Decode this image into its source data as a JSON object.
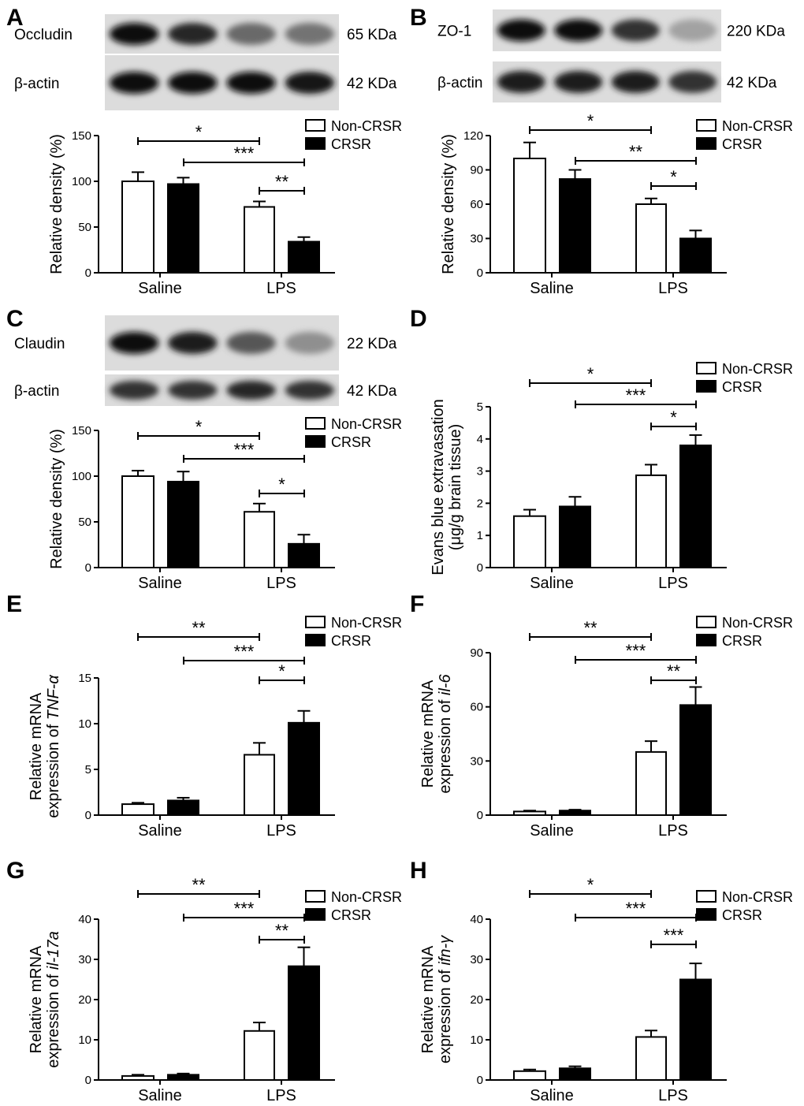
{
  "legend": {
    "non": "Non-CRSR",
    "crsr": "CRSR"
  },
  "colors": {
    "non": "#ffffff",
    "crsr": "#000000",
    "stroke": "#000000"
  },
  "chart_data": [
    {
      "panel": "A",
      "type": "bar",
      "categories": [
        "Saline",
        "LPS"
      ],
      "ylabel": [
        "Relative density (%)"
      ],
      "gene": "",
      "ylim": [
        0,
        150
      ],
      "ticks": [
        0,
        50,
        100,
        150
      ],
      "series": [
        {
          "name": "Non-CRSR",
          "values": [
            100,
            72
          ],
          "errors": [
            10,
            6
          ]
        },
        {
          "name": "CRSR",
          "values": [
            97,
            34
          ],
          "errors": [
            7,
            5
          ]
        }
      ],
      "significance": [
        "*",
        "***",
        "**"
      ],
      "blots": [
        {
          "label": "Occludin",
          "size": "65 KDa",
          "intensity": [
            1,
            0.85,
            0.5,
            0.45
          ]
        },
        {
          "label": "β-actin",
          "size": "42 KDa",
          "intensity": [
            1,
            1,
            1,
            0.95
          ]
        }
      ]
    },
    {
      "panel": "B",
      "type": "bar",
      "categories": [
        "Saline",
        "LPS"
      ],
      "ylabel": [
        "Relative density (%)"
      ],
      "gene": "",
      "ylim": [
        0,
        120
      ],
      "ticks": [
        0,
        30,
        60,
        90,
        120
      ],
      "series": [
        {
          "name": "Non-CRSR",
          "values": [
            100,
            60
          ],
          "errors": [
            14,
            5
          ]
        },
        {
          "name": "CRSR",
          "values": [
            82,
            30
          ],
          "errors": [
            8,
            7
          ]
        }
      ],
      "significance": [
        "*",
        "**",
        "*"
      ],
      "blots": [
        {
          "label": "ZO-1",
          "size": "220 KDa",
          "intensity": [
            1,
            1,
            0.8,
            0.2
          ]
        },
        {
          "label": "β-actin",
          "size": "42 KDa",
          "intensity": [
            0.9,
            0.9,
            0.9,
            0.8
          ]
        }
      ]
    },
    {
      "panel": "C",
      "type": "bar",
      "categories": [
        "Saline",
        "LPS"
      ],
      "ylabel": [
        "Relative density (%)"
      ],
      "gene": "",
      "ylim": [
        0,
        150
      ],
      "ticks": [
        0,
        50,
        100,
        150
      ],
      "series": [
        {
          "name": "Non-CRSR",
          "values": [
            100,
            61
          ],
          "errors": [
            6,
            9
          ]
        },
        {
          "name": "CRSR",
          "values": [
            94,
            26
          ],
          "errors": [
            11,
            10
          ]
        }
      ],
      "significance": [
        "*",
        "***",
        "*"
      ],
      "blots": [
        {
          "label": "Claudin",
          "size": "22 KDa",
          "intensity": [
            1,
            0.9,
            0.6,
            0.3
          ]
        },
        {
          "label": "β-actin",
          "size": "42 KDa",
          "intensity": [
            0.8,
            0.8,
            0.85,
            0.8
          ]
        }
      ]
    },
    {
      "panel": "D",
      "type": "bar",
      "categories": [
        "Saline",
        "LPS"
      ],
      "ylabel": [
        "Evans blue extravasation",
        "(μg/g brain tissue)"
      ],
      "gene": "",
      "ylim": [
        0,
        5
      ],
      "ticks": [
        0,
        1,
        2,
        3,
        4,
        5
      ],
      "series": [
        {
          "name": "Non-CRSR",
          "values": [
            1.6,
            2.87
          ],
          "errors": [
            0.2,
            0.33
          ]
        },
        {
          "name": "CRSR",
          "values": [
            1.9,
            3.8
          ],
          "errors": [
            0.3,
            0.32
          ]
        }
      ],
      "significance": [
        "*",
        "***",
        "*"
      ],
      "blots": []
    },
    {
      "panel": "E",
      "type": "bar",
      "categories": [
        "Saline",
        "LPS"
      ],
      "ylabel": [
        "Relative mRNA",
        "expression of "
      ],
      "gene": "TNF-α",
      "ylim": [
        0,
        15
      ],
      "ticks": [
        0,
        5,
        10,
        15
      ],
      "series": [
        {
          "name": "Non-CRSR",
          "values": [
            1.2,
            6.6
          ],
          "errors": [
            0.15,
            1.3
          ]
        },
        {
          "name": "CRSR",
          "values": [
            1.6,
            10.1
          ],
          "errors": [
            0.3,
            1.3
          ]
        }
      ],
      "significance": [
        "**",
        "***",
        "*"
      ],
      "blots": []
    },
    {
      "panel": "F",
      "type": "bar",
      "categories": [
        "Saline",
        "LPS"
      ],
      "ylabel": [
        "Relative mRNA",
        "expression of "
      ],
      "gene": "il-6",
      "ylim": [
        0,
        90
      ],
      "ticks": [
        0,
        30,
        60,
        90
      ],
      "series": [
        {
          "name": "Non-CRSR",
          "values": [
            2,
            35
          ],
          "errors": [
            0.5,
            6
          ]
        },
        {
          "name": "CRSR",
          "values": [
            2.5,
            61
          ],
          "errors": [
            0.5,
            10
          ]
        }
      ],
      "significance": [
        "**",
        "***",
        "**"
      ],
      "blots": []
    },
    {
      "panel": "G",
      "type": "bar",
      "categories": [
        "Saline",
        "LPS"
      ],
      "ylabel": [
        "Relative mRNA",
        "expression of "
      ],
      "gene": "il-17a",
      "ylim": [
        0,
        40
      ],
      "ticks": [
        0,
        10,
        20,
        30,
        40
      ],
      "series": [
        {
          "name": "Non-CRSR",
          "values": [
            1,
            12.2
          ],
          "errors": [
            0.3,
            2.1
          ]
        },
        {
          "name": "CRSR",
          "values": [
            1.3,
            28.3
          ],
          "errors": [
            0.3,
            4.7
          ]
        }
      ],
      "significance": [
        "**",
        "***",
        "**"
      ],
      "blots": []
    },
    {
      "panel": "H",
      "type": "bar",
      "categories": [
        "Saline",
        "LPS"
      ],
      "ylabel": [
        "Relative mRNA",
        "expression of "
      ],
      "gene": "ifn-γ",
      "ylim": [
        0,
        40
      ],
      "ticks": [
        0,
        10,
        20,
        30,
        40
      ],
      "series": [
        {
          "name": "Non-CRSR",
          "values": [
            2.2,
            10.7
          ],
          "errors": [
            0.4,
            1.6
          ]
        },
        {
          "name": "CRSR",
          "values": [
            2.9,
            25
          ],
          "errors": [
            0.5,
            4
          ]
        }
      ],
      "significance": [
        "*",
        "***",
        "***"
      ],
      "blots": []
    }
  ]
}
